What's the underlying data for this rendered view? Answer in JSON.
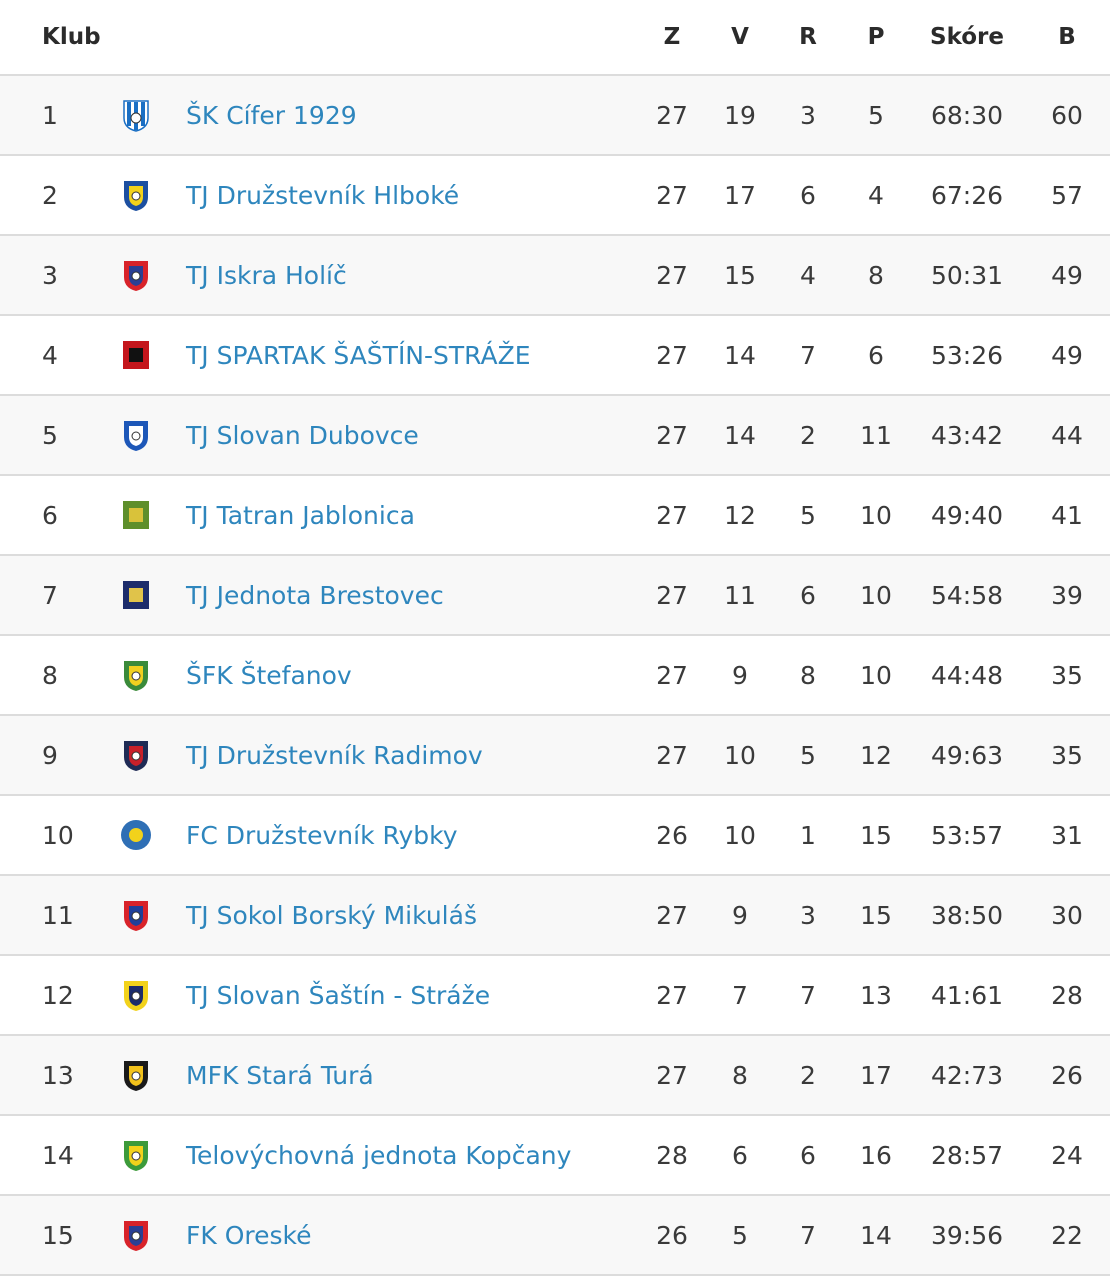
{
  "header": {
    "club": "Klub",
    "z": "Z",
    "v": "V",
    "r": "R",
    "p": "P",
    "score": "Skóre",
    "b": "B"
  },
  "rows": [
    {
      "pos": "1",
      "name": "ŠK Cífer 1929",
      "z": "27",
      "v": "19",
      "r": "3",
      "p": "5",
      "score": "68:30",
      "b": "60",
      "crest": "stripes-blue",
      "colors": [
        "#1a6fc4",
        "#ffffff"
      ]
    },
    {
      "pos": "2",
      "name": "TJ Družstevník Hlboké",
      "z": "27",
      "v": "17",
      "r": "6",
      "p": "4",
      "score": "67:26",
      "b": "57",
      "crest": "shield-yellow-blue",
      "colors": [
        "#1c4fa0",
        "#f2d21b"
      ]
    },
    {
      "pos": "3",
      "name": "TJ Iskra Holíč",
      "z": "27",
      "v": "15",
      "r": "4",
      "p": "8",
      "score": "50:31",
      "b": "49",
      "crest": "shield-red-blue",
      "colors": [
        "#d8232a",
        "#2a3f94"
      ]
    },
    {
      "pos": "4",
      "name": "TJ SPARTAK ŠAŠTÍN-STRÁŽE",
      "z": "27",
      "v": "14",
      "r": "7",
      "p": "6",
      "score": "53:26",
      "b": "49",
      "crest": "square-red-black",
      "colors": [
        "#c4161c",
        "#111111"
      ]
    },
    {
      "pos": "5",
      "name": "TJ Slovan Dubovce",
      "z": "27",
      "v": "14",
      "r": "2",
      "p": "11",
      "score": "43:42",
      "b": "44",
      "crest": "shield-blue",
      "colors": [
        "#1d57b8",
        "#ffffff"
      ]
    },
    {
      "pos": "6",
      "name": "TJ Tatran Jablonica",
      "z": "27",
      "v": "12",
      "r": "5",
      "p": "10",
      "score": "49:40",
      "b": "41",
      "crest": "square-green",
      "colors": [
        "#5e8f2b",
        "#d9c23a"
      ]
    },
    {
      "pos": "7",
      "name": "TJ Jednota Brestovec",
      "z": "27",
      "v": "11",
      "r": "6",
      "p": "10",
      "score": "54:58",
      "b": "39",
      "crest": "square-navy",
      "colors": [
        "#1c2c6b",
        "#e0c34a"
      ]
    },
    {
      "pos": "8",
      "name": "ŠFK Štefanov",
      "z": "27",
      "v": "9",
      "r": "8",
      "p": "10",
      "score": "44:48",
      "b": "35",
      "crest": "shield-green-yellow",
      "colors": [
        "#3a8a3a",
        "#f0d020"
      ]
    },
    {
      "pos": "9",
      "name": "TJ Družstevník Radimov",
      "z": "27",
      "v": "10",
      "r": "5",
      "p": "12",
      "score": "49:63",
      "b": "35",
      "crest": "shield-dark-red",
      "colors": [
        "#1f2b55",
        "#c8202a"
      ]
    },
    {
      "pos": "10",
      "name": "FC Družstevník Rybky",
      "z": "26",
      "v": "10",
      "r": "1",
      "p": "15",
      "score": "53:57",
      "b": "31",
      "crest": "circle-blue-yellow",
      "colors": [
        "#2f6fb5",
        "#f2d21b"
      ]
    },
    {
      "pos": "11",
      "name": "TJ Sokol Borský Mikuláš",
      "z": "27",
      "v": "9",
      "r": "3",
      "p": "15",
      "score": "38:50",
      "b": "30",
      "crest": "shield-red-white-blue",
      "colors": [
        "#d8232a",
        "#1f3f9a"
      ]
    },
    {
      "pos": "12",
      "name": "TJ Slovan Šaštín - Stráže",
      "z": "27",
      "v": "7",
      "r": "7",
      "p": "13",
      "score": "41:61",
      "b": "28",
      "crest": "shield-yellow-navy",
      "colors": [
        "#f2d21b",
        "#1c2c6b"
      ]
    },
    {
      "pos": "13",
      "name": "MFK Stará Turá",
      "z": "27",
      "v": "8",
      "r": "2",
      "p": "17",
      "score": "42:73",
      "b": "26",
      "crest": "shield-black-yellow",
      "colors": [
        "#1a1a1a",
        "#f2c21b"
      ]
    },
    {
      "pos": "14",
      "name": "Telovýchovná jednota Kopčany",
      "z": "28",
      "v": "6",
      "r": "6",
      "p": "16",
      "score": "28:57",
      "b": "24",
      "crest": "shield-green",
      "colors": [
        "#3c9a3a",
        "#f2d21b"
      ]
    },
    {
      "pos": "15",
      "name": "FK Oreské",
      "z": "26",
      "v": "5",
      "r": "7",
      "p": "14",
      "score": "39:56",
      "b": "22",
      "crest": "shield-white-red",
      "colors": [
        "#d8232a",
        "#2a3f94"
      ]
    }
  ]
}
